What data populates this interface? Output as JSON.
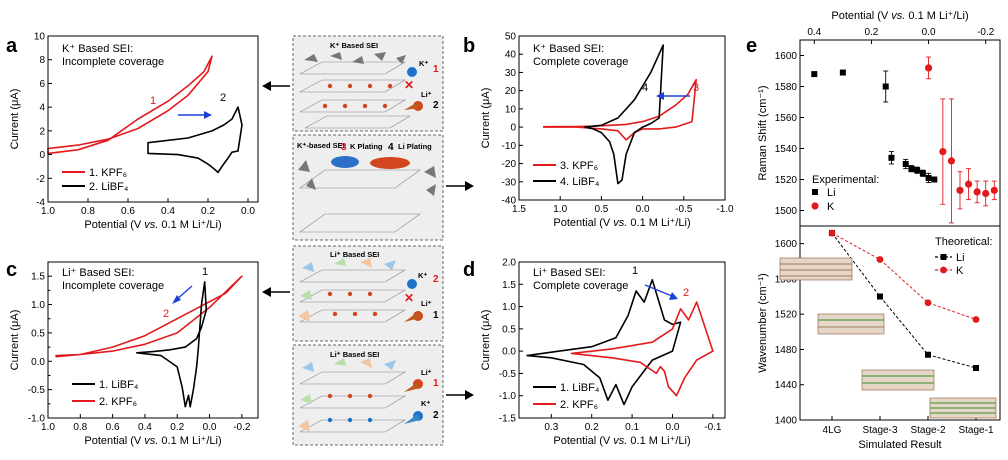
{
  "figure": {
    "center_arrow_glyph": "arrow-left / arrow-right"
  },
  "chart_data": [
    {
      "panel": "a",
      "type": "line",
      "title_lines": [
        "K⁺ Based SEI:",
        "Incomplete coverage"
      ],
      "xlabel": "Potential (V vs. 0.1 M Li⁺/Li)",
      "ylabel": "Current (μA)",
      "xlim": [
        1.0,
        -0.05
      ],
      "ylim": [
        -4,
        10
      ],
      "xticks": [
        1.0,
        0.8,
        0.6,
        0.4,
        0.2,
        0.0
      ],
      "xtick_labels": [
        "1.0",
        "0.8",
        "0.6",
        "0.4",
        "0.2",
        "0.0"
      ],
      "yticks": [
        -4,
        -2,
        0,
        2,
        4,
        6,
        8,
        10
      ],
      "ytick_labels": [
        "-4",
        "-2",
        "0",
        "2",
        "4",
        "6",
        "8",
        "10"
      ],
      "curve_labels": [
        "1",
        "2"
      ],
      "legend": [
        "1. KPF₆",
        "2. LiBF₄"
      ],
      "series": [
        {
          "name": "1. KPF₆",
          "color": "#e31a1c",
          "closed": true,
          "x": [
            1.0,
            0.85,
            0.7,
            0.55,
            0.4,
            0.3,
            0.2,
            0.18,
            0.22,
            0.3,
            0.4,
            0.55,
            0.7,
            0.85,
            1.0
          ],
          "y": [
            0.5,
            0.8,
            1.3,
            2.2,
            3.7,
            5.0,
            7.0,
            8.3,
            7.0,
            5.8,
            4.5,
            3.0,
            1.2,
            0.4,
            0.1
          ]
        },
        {
          "name": "2. LiBF₄",
          "color": "#000000",
          "closed": true,
          "x": [
            0.5,
            0.35,
            0.25,
            0.2,
            0.17,
            0.15,
            0.13,
            0.1,
            0.08,
            0.05,
            0.03,
            0.05,
            0.08,
            0.12,
            0.18,
            0.3,
            0.5
          ],
          "y": [
            0.1,
            0.0,
            -0.3,
            -0.8,
            -1.2,
            -1.5,
            -1.0,
            -0.3,
            0.2,
            0.3,
            2.5,
            4.0,
            3.0,
            2.5,
            2.0,
            1.4,
            1.0
          ]
        }
      ]
    },
    {
      "panel": "b",
      "type": "line",
      "title_lines": [
        "K⁺ Based SEI:",
        "Complete coverage"
      ],
      "xlabel": "Potential (V vs. 0.1 M Li⁺/Li)",
      "ylabel": "Current (μA)",
      "xlim": [
        1.5,
        -1.0
      ],
      "ylim": [
        -40,
        50
      ],
      "xticks": [
        1.5,
        1.0,
        0.5,
        0.0,
        -0.5,
        -1.0
      ],
      "xtick_labels": [
        "1.5",
        "1.0",
        "0.5",
        "0.0",
        "-0.5",
        "-1.0"
      ],
      "yticks": [
        -40,
        -30,
        -20,
        -10,
        0,
        10,
        20,
        30,
        40,
        50
      ],
      "ytick_labels": [
        "-40",
        "-30",
        "-20",
        "-10",
        "0",
        "10",
        "20",
        "30",
        "40",
        "50"
      ],
      "curve_labels": [
        "4",
        "3"
      ],
      "legend": [
        "3. KPF₆",
        "4. LiBF₄"
      ],
      "series": [
        {
          "name": "3. KPF₆",
          "color": "#e31a1c",
          "closed": true,
          "x": [
            1.2,
            0.8,
            0.5,
            0.3,
            0.2,
            0.1,
            0.0,
            -0.2,
            -0.4,
            -0.6,
            -0.65,
            -0.55,
            -0.4,
            -0.2,
            0.0,
            0.2,
            0.4,
            0.6,
            0.8,
            1.2
          ],
          "y": [
            0,
            0,
            -1,
            -2,
            -7,
            -3,
            -1,
            -1,
            0,
            3,
            26,
            18,
            12,
            6,
            3,
            1.5,
            1,
            0.5,
            0.3,
            0.2
          ]
        },
        {
          "name": "4. LiBF₄",
          "color": "#000000",
          "closed": true,
          "x": [
            0.7,
            0.6,
            0.5,
            0.4,
            0.35,
            0.3,
            0.25,
            0.2,
            0.1,
            0.0,
            -0.1,
            -0.2,
            -0.25,
            -0.1,
            0.1,
            0.3,
            0.5,
            0.7
          ],
          "y": [
            0,
            -1,
            -3,
            -8,
            -15,
            -31,
            -29,
            -15,
            -3,
            0,
            2,
            5,
            45,
            30,
            15,
            5,
            1,
            0
          ]
        }
      ]
    },
    {
      "panel": "c",
      "type": "line",
      "title_lines": [
        "Li⁺ Based SEI:",
        "Incomplete coverage"
      ],
      "xlabel": "Potential (V vs. 0.1 M Li⁺/Li)",
      "ylabel": "Current (μA)",
      "xlim": [
        1.0,
        -0.3
      ],
      "ylim": [
        -1.0,
        1.75
      ],
      "xticks": [
        1.0,
        0.8,
        0.6,
        0.4,
        0.2,
        0.0,
        -0.2
      ],
      "xtick_labels": [
        "1.0",
        "0.8",
        "0.6",
        "0.4",
        "0.2",
        "0.0",
        "-0.2"
      ],
      "yticks": [
        -1.0,
        -0.75,
        -0.5,
        -0.25,
        0.0,
        0.25,
        0.5,
        0.75,
        1.0,
        1.25,
        1.5,
        1.75
      ],
      "ytick_labels": [
        "-1.0",
        "",
        "-0.5",
        "",
        "0.0",
        "",
        "0.5",
        "",
        "1.0",
        "",
        "1.5",
        ""
      ],
      "curve_labels": [
        "1",
        "2"
      ],
      "legend": [
        "1. LiBF₄",
        "2. KPF₆"
      ],
      "series": [
        {
          "name": "2. KPF₆",
          "color": "#e31a1c",
          "closed": true,
          "x": [
            0.95,
            0.8,
            0.6,
            0.4,
            0.2,
            0.0,
            -0.2,
            -0.1,
            0.0,
            0.2,
            0.4,
            0.6,
            0.8,
            0.95
          ],
          "y": [
            0.1,
            0.12,
            0.18,
            0.3,
            0.5,
            0.95,
            1.5,
            1.2,
            1.05,
            0.75,
            0.45,
            0.25,
            0.12,
            0.08
          ]
        },
        {
          "name": "1. LiBF₄",
          "color": "#000000",
          "closed": true,
          "x": [
            0.45,
            0.3,
            0.2,
            0.17,
            0.15,
            0.13,
            0.12,
            0.1,
            0.08,
            0.07,
            0.05,
            0.03,
            0.02,
            0.05,
            0.08,
            0.15,
            0.25,
            0.35,
            0.45
          ],
          "y": [
            0.15,
            0.1,
            -0.1,
            -0.45,
            -0.8,
            -0.6,
            -0.8,
            -0.5,
            -0.1,
            0.2,
            1.0,
            1.4,
            0.9,
            0.6,
            0.4,
            0.25,
            0.2,
            0.17,
            0.15
          ]
        }
      ]
    },
    {
      "panel": "d",
      "type": "line",
      "title_lines": [
        "Li⁺ Based SEI:",
        "Complete coverage"
      ],
      "xlabel": "Potential (V vs. 0.1 M Li⁺/Li)",
      "ylabel": "Current (μA)",
      "xlim": [
        0.38,
        -0.13
      ],
      "ylim": [
        -1.5,
        2.0
      ],
      "xticks": [
        0.3,
        0.2,
        0.1,
        0.0,
        -0.1
      ],
      "xtick_labels": [
        "0.3",
        "0.2",
        "0.1",
        "0.0",
        "-0.1"
      ],
      "yticks": [
        -1.5,
        -1.0,
        -0.5,
        0.0,
        0.5,
        1.0,
        1.5,
        2.0
      ],
      "ytick_labels": [
        "-1.5",
        "-1.0",
        "-0.5",
        "0.0",
        "0.5",
        "1.0",
        "1.5",
        "2.0"
      ],
      "curve_labels": [
        "1",
        "2"
      ],
      "legend": [
        "1. LiBF₄",
        "2. KPF₆"
      ],
      "series": [
        {
          "name": "1. LiBF₄",
          "color": "#000000",
          "closed": true,
          "x": [
            0.36,
            0.3,
            0.22,
            0.18,
            0.16,
            0.14,
            0.12,
            0.1,
            0.05,
            0.0,
            -0.02,
            0.0,
            0.02,
            0.05,
            0.07,
            0.09,
            0.11,
            0.14,
            0.2,
            0.28,
            0.36
          ],
          "y": [
            -0.1,
            -0.15,
            -0.3,
            -0.6,
            -1.1,
            -0.75,
            -1.2,
            -0.8,
            -0.2,
            0.0,
            0.65,
            0.6,
            0.7,
            1.6,
            1.1,
            1.35,
            0.8,
            0.3,
            0.1,
            0.0,
            -0.1
          ]
        },
        {
          "name": "2. KPF₆",
          "color": "#e31a1c",
          "closed": true,
          "x": [
            0.25,
            0.15,
            0.08,
            0.04,
            0.03,
            0.02,
            0.01,
            -0.01,
            -0.03,
            -0.06,
            -0.1,
            -0.06,
            -0.04,
            -0.02,
            0.0,
            0.05,
            0.15,
            0.25
          ],
          "y": [
            -0.05,
            -0.15,
            -0.25,
            -0.5,
            -0.35,
            -0.45,
            -0.8,
            -1.0,
            -0.6,
            -0.2,
            0.0,
            1.1,
            0.7,
            0.95,
            0.5,
            0.2,
            0.05,
            -0.05
          ]
        }
      ]
    },
    {
      "panel": "e-top",
      "type": "scatter",
      "top_xlabel": "Potential (V vs. 0.1 M Li⁺/Li)",
      "ylabel": "Raman Shift (cm⁻¹)",
      "xlim": [
        0.45,
        -0.25
      ],
      "ylim": [
        1490,
        1610
      ],
      "xticks": [
        0.4,
        0.2,
        0.0,
        -0.2
      ],
      "xtick_labels": [
        "0.4",
        "0.2",
        "0.0",
        "-0.2"
      ],
      "yticks": [
        1500,
        1520,
        1540,
        1560,
        1580,
        1600
      ],
      "ytick_labels": [
        "1500",
        "1520",
        "1540",
        "1560",
        "1580",
        "1600"
      ],
      "legend_title": "Experimental:",
      "legend": [
        "Li",
        "K"
      ],
      "series": [
        {
          "name": "Li",
          "color": "#000000",
          "marker": "square",
          "x": [
            0.4,
            0.3,
            0.15,
            0.13,
            0.08,
            0.06,
            0.04,
            0.02,
            0.0,
            -0.02
          ],
          "y": [
            1588,
            1589,
            1580,
            1534,
            1530,
            1527,
            1526,
            1524,
            1521,
            1520
          ],
          "yerr": [
            0,
            0,
            10,
            4,
            3,
            2,
            2,
            2,
            3,
            0
          ]
        },
        {
          "name": "K",
          "color": "#e31a1c",
          "marker": "circle",
          "x": [
            0.0,
            -0.05,
            -0.08,
            -0.11,
            -0.14,
            -0.17,
            -0.2,
            -0.23
          ],
          "y": [
            1592,
            1538,
            1532,
            1513,
            1517,
            1512,
            1511,
            1513
          ],
          "yerr": [
            7,
            34,
            40,
            12,
            10,
            7,
            8,
            6
          ]
        }
      ]
    },
    {
      "panel": "e-bottom",
      "type": "line",
      "xlabel": "Simulated Result",
      "ylabel": "Wavenumber (cm⁻¹)",
      "categories": [
        "4LG",
        "Stage-3",
        "Stage-2",
        "Stage-1"
      ],
      "ylim": [
        1400,
        1620
      ],
      "yticks": [
        1400,
        1440,
        1480,
        1520,
        1560,
        1600
      ],
      "ytick_labels": [
        "1400",
        "1440",
        "1480",
        "1520",
        "1560",
        "1600"
      ],
      "legend_title": "Theoretical:",
      "legend": [
        "Li",
        "K"
      ],
      "series": [
        {
          "name": "Li",
          "color": "#000000",
          "marker": "square",
          "dash": true,
          "values": [
            1612,
            1540,
            1474,
            1459
          ]
        },
        {
          "name": "K",
          "color": "#e31a1c",
          "marker": "circle",
          "dash": true,
          "values": [
            1612,
            1582,
            1533,
            1514
          ]
        }
      ]
    }
  ],
  "schematic": {
    "box1": {
      "title": "K⁺ Based SEI",
      "ions": [
        "K⁺",
        "Li⁺"
      ],
      "numbers": [
        "1",
        "2"
      ]
    },
    "box2": {
      "sei": "K⁺-based SEI",
      "k_plating_num": "3",
      "k_plating": "K Plating",
      "li_plating_num": "4",
      "li_plating": "Li Plating"
    },
    "box3": {
      "title": "Li⁺ Based SEI",
      "ions": [
        "K⁺",
        "Li⁺"
      ],
      "numbers": [
        "2",
        "1"
      ]
    },
    "box4": {
      "title": "Li⁺ Based SEI",
      "ions": [
        "Li⁺",
        "K⁺"
      ],
      "numbers": [
        "1",
        "2"
      ]
    }
  },
  "panel_letters": [
    "a",
    "b",
    "c",
    "d",
    "e"
  ],
  "axis_vs_word": "vs.",
  "colors": {
    "red": "#e31a1c",
    "black": "#000000",
    "blue": "#1f3fd6",
    "schematic_bg": "#eeeeee"
  }
}
